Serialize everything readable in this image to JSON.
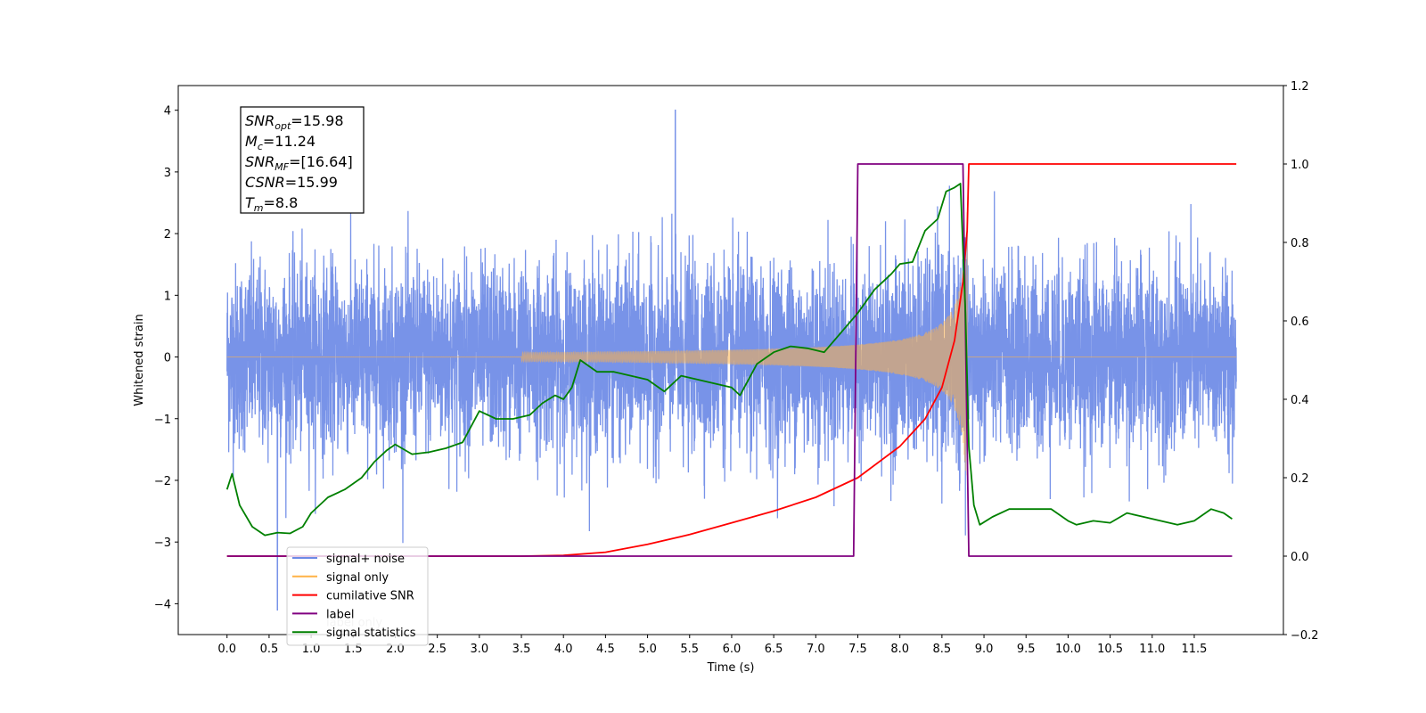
{
  "chart_data": {
    "type": "line",
    "xlabel": "Time (s)",
    "ylabel_left": "Whitened strain",
    "ylabel_right": "",
    "xlim": [
      -0.58,
      12.56
    ],
    "ylim_left": [
      -4.5,
      4.4
    ],
    "ylim_right": [
      -0.2,
      1.2
    ],
    "x_ticks": [
      0.0,
      0.5,
      1.0,
      1.5,
      2.0,
      2.5,
      3.0,
      3.5,
      4.0,
      4.5,
      5.0,
      5.5,
      6.0,
      6.5,
      7.0,
      7.5,
      8.0,
      8.5,
      9.0,
      9.5,
      10.0,
      10.5,
      11.0,
      11.5
    ],
    "x_tick_labels": [
      "0.0",
      "0.5",
      "1.0",
      "1.5",
      "2.0",
      "2.5",
      "3.0",
      "3.5",
      "4.0",
      "4.5",
      "5.0",
      "5.5",
      "6.0",
      "6.5",
      "7.0",
      "7.5",
      "8.0",
      "8.5",
      "9.0",
      "9.5",
      "10.0",
      "10.5",
      "11.0",
      "11.5"
    ],
    "y_left_ticks": [
      -4,
      -3,
      -2,
      -1,
      0,
      1,
      2,
      3,
      4
    ],
    "y_left_tick_labels": [
      "−4",
      "−3",
      "−2",
      "−1",
      "0",
      "1",
      "2",
      "3",
      "4"
    ],
    "y_right_ticks": [
      -0.2,
      0.0,
      0.2,
      0.4,
      0.6,
      0.8,
      1.0,
      1.2
    ],
    "y_right_tick_labels": [
      "−0.2",
      "0.0",
      "0.2",
      "0.4",
      "0.6",
      "0.8",
      "1.0",
      "1.2"
    ],
    "grid": false,
    "legend_position": "lower-left",
    "annotation_box": [
      {
        "sym": "SNR",
        "sub": "opt",
        "rest": "=15.98"
      },
      {
        "sym": "M",
        "sub": "c",
        "rest": "=11.24"
      },
      {
        "sym": "SNR",
        "sub": "MF",
        "rest": "=[16.64]"
      },
      {
        "sym": "CSNR",
        "sub": "",
        "rest": "=15.99"
      },
      {
        "sym": "T",
        "sub": "m",
        "rest": "=8.8"
      }
    ],
    "legend": [
      {
        "name": "signal+ noise",
        "color": "#6d8ae6"
      },
      {
        "name": "signal only",
        "color": "#ffb347"
      },
      {
        "name": "cumilative SNR",
        "color": "#ff0000"
      },
      {
        "name": "label",
        "color": "#800080"
      },
      {
        "name": "signal statistics",
        "color": "#008000"
      }
    ],
    "legend_overlap_text": "label only",
    "series": [
      {
        "name": "signal+ noise",
        "axis": "left",
        "color": "#6d8ae6",
        "noise_std": 0.75,
        "x_start": 0.0,
        "x_end": 12.0,
        "peak_max": 4.0,
        "peak_min": -4.1
      },
      {
        "name": "signal only",
        "axis": "left",
        "color": "#ffb347",
        "chirp_merger_time": 8.8,
        "chirp_peak_amplitude": 2.4,
        "chirp_start": 3.5
      },
      {
        "name": "cumilative SNR",
        "axis": "right",
        "color": "#ff0000",
        "points": [
          [
            0.0,
            0.0
          ],
          [
            3.5,
            0.0
          ],
          [
            4.0,
            0.002
          ],
          [
            4.5,
            0.01
          ],
          [
            5.0,
            0.03
          ],
          [
            5.5,
            0.055
          ],
          [
            6.0,
            0.085
          ],
          [
            6.5,
            0.115
          ],
          [
            7.0,
            0.15
          ],
          [
            7.5,
            0.2
          ],
          [
            8.0,
            0.28
          ],
          [
            8.3,
            0.35
          ],
          [
            8.5,
            0.43
          ],
          [
            8.65,
            0.55
          ],
          [
            8.75,
            0.7
          ],
          [
            8.8,
            0.83
          ],
          [
            8.82,
            1.0
          ],
          [
            12.0,
            1.0
          ]
        ]
      },
      {
        "name": "label",
        "axis": "right",
        "color": "#800080",
        "points": [
          [
            0.0,
            0.0
          ],
          [
            7.45,
            0.0
          ],
          [
            7.5,
            1.0
          ],
          [
            8.75,
            1.0
          ],
          [
            8.82,
            0.0
          ],
          [
            11.95,
            0.0
          ]
        ]
      },
      {
        "name": "signal statistics",
        "axis": "right",
        "color": "#008000",
        "points": [
          [
            0.0,
            0.17
          ],
          [
            0.06,
            0.21
          ],
          [
            0.15,
            0.13
          ],
          [
            0.3,
            0.075
          ],
          [
            0.45,
            0.053
          ],
          [
            0.6,
            0.06
          ],
          [
            0.75,
            0.058
          ],
          [
            0.9,
            0.075
          ],
          [
            1.0,
            0.11
          ],
          [
            1.2,
            0.15
          ],
          [
            1.4,
            0.17
          ],
          [
            1.6,
            0.2
          ],
          [
            1.75,
            0.24
          ],
          [
            1.9,
            0.27
          ],
          [
            2.0,
            0.285
          ],
          [
            2.2,
            0.26
          ],
          [
            2.4,
            0.265
          ],
          [
            2.6,
            0.275
          ],
          [
            2.8,
            0.29
          ],
          [
            3.0,
            0.37
          ],
          [
            3.2,
            0.35
          ],
          [
            3.4,
            0.35
          ],
          [
            3.6,
            0.36
          ],
          [
            3.75,
            0.39
          ],
          [
            3.9,
            0.41
          ],
          [
            4.0,
            0.4
          ],
          [
            4.1,
            0.43
          ],
          [
            4.2,
            0.5
          ],
          [
            4.4,
            0.47
          ],
          [
            4.6,
            0.47
          ],
          [
            4.8,
            0.46
          ],
          [
            5.0,
            0.45
          ],
          [
            5.2,
            0.42
          ],
          [
            5.4,
            0.46
          ],
          [
            5.6,
            0.45
          ],
          [
            5.8,
            0.44
          ],
          [
            6.0,
            0.43
          ],
          [
            6.1,
            0.41
          ],
          [
            6.3,
            0.49
          ],
          [
            6.5,
            0.52
          ],
          [
            6.7,
            0.535
          ],
          [
            6.9,
            0.53
          ],
          [
            7.1,
            0.52
          ],
          [
            7.3,
            0.57
          ],
          [
            7.5,
            0.62
          ],
          [
            7.7,
            0.68
          ],
          [
            7.9,
            0.72
          ],
          [
            8.0,
            0.745
          ],
          [
            8.15,
            0.75
          ],
          [
            8.3,
            0.83
          ],
          [
            8.45,
            0.86
          ],
          [
            8.55,
            0.93
          ],
          [
            8.65,
            0.94
          ],
          [
            8.72,
            0.95
          ],
          [
            8.78,
            0.62
          ],
          [
            8.82,
            0.28
          ],
          [
            8.88,
            0.13
          ],
          [
            8.95,
            0.08
          ],
          [
            9.1,
            0.1
          ],
          [
            9.3,
            0.12
          ],
          [
            9.5,
            0.12
          ],
          [
            9.8,
            0.12
          ],
          [
            10.0,
            0.09
          ],
          [
            10.1,
            0.08
          ],
          [
            10.3,
            0.09
          ],
          [
            10.5,
            0.085
          ],
          [
            10.7,
            0.11
          ],
          [
            10.9,
            0.1
          ],
          [
            11.1,
            0.09
          ],
          [
            11.3,
            0.08
          ],
          [
            11.5,
            0.09
          ],
          [
            11.7,
            0.12
          ],
          [
            11.85,
            0.11
          ],
          [
            11.95,
            0.095
          ]
        ]
      }
    ]
  }
}
